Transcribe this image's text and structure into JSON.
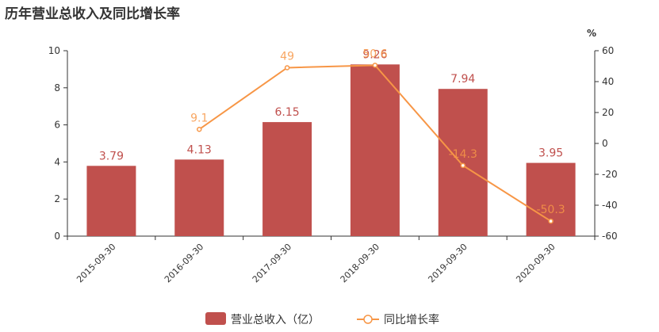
{
  "chart_data": {
    "type": "bar",
    "title": "历年营业总收入及同比增长率",
    "categories": [
      "2015-09-30",
      "2016-09-30",
      "2017-09-30",
      "2018-09-30",
      "2019-09-30",
      "2020-09-30"
    ],
    "series": [
      {
        "name": "营业总收入（亿）",
        "type": "bar",
        "axis": "left",
        "color": "#c0504d",
        "values": [
          3.79,
          4.13,
          6.15,
          9.26,
          7.94,
          3.95
        ],
        "labels": [
          "3.79",
          "4.13",
          "6.15",
          "9.26",
          "7.94",
          "3.95"
        ]
      },
      {
        "name": "同比增长率",
        "type": "line",
        "axis": "right",
        "color": "#f79646",
        "values": [
          null,
          9.1,
          49,
          50.6,
          -14.3,
          -50.3
        ],
        "labels": [
          "",
          "9.1",
          "49",
          "50.6",
          "-14.3",
          "-50.3"
        ]
      }
    ],
    "y_left": {
      "min": 0,
      "max": 10,
      "ticks": [
        "0",
        "2",
        "4",
        "6",
        "8",
        "10"
      ]
    },
    "y_right": {
      "min": -60,
      "max": 60,
      "unit": "%",
      "ticks": [
        "-60",
        "-40",
        "-20",
        "0",
        "20",
        "40",
        "60"
      ]
    },
    "legend_position": "bottom-center",
    "grid": false
  }
}
